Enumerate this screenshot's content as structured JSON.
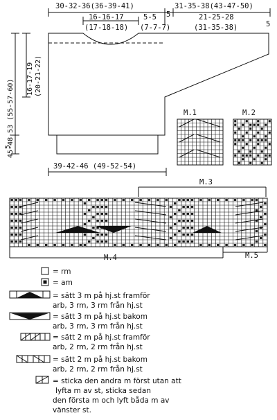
{
  "schematic": {
    "top_dims": {
      "body_half_width": "30-32-36(36-39-41)",
      "shoulder_edge": "5",
      "sleeve_length": "31-35-38(43-47-50)",
      "sleeve_end": "5"
    },
    "neck_dims": {
      "neck_width_1": "16-16-17",
      "neck_width_2": "(17-18-18)",
      "shoulder_1": "5-5",
      "shoulder_2": "(7-7-7)",
      "sleeve_top_1": "21-25-28",
      "sleeve_top_2": "(31-35-38)"
    },
    "side_dims": {
      "total_length": "45-48-53 (55-57-60)",
      "armhole_depth_1": "16-17-19",
      "armhole_depth_2": "(20-21-22)",
      "rib": "5"
    },
    "bottom_dim": "39-42-46 (49-52-54)"
  },
  "charts": {
    "m1_label": "M.1",
    "m2_label": "M.2",
    "m3_label": "M.3",
    "m4_label": "M.4",
    "m5_label": "M.5"
  },
  "legend": {
    "rm": "= rm",
    "am": "= am",
    "c3f_1": "= sätt 3 m på hj.st framför",
    "c3f_2": "arb, 3 rm, 3 rm från hj.st",
    "c3b_1": "= sätt 3 m på hj.st bakom",
    "c3b_2": "arb, 3 rm, 3 rm från hj.st",
    "c2f_1": "= sätt 2 m på hj.st framför",
    "c2f_2": "arb, 2 rm, 2 rm från hj.st",
    "c2b_1": "= sätt 2 m på hj.st bakom",
    "c2b_2": "arb, 2 rm, 2 rm från hj.st",
    "tw_1": "= sticka den andra m först utan att",
    "tw_2": "lyfta m av st, sticka sedan",
    "tw_3": "den första m och lyft båda m av",
    "tw_4": "vänster st."
  }
}
